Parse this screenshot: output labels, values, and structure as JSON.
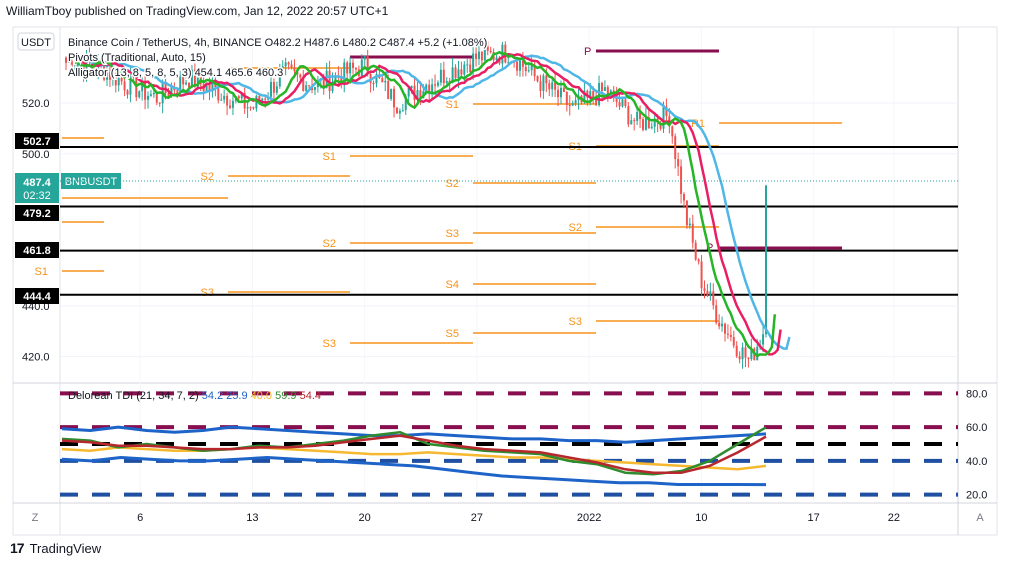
{
  "header": {
    "published_by": "WilliamTboy published on TradingView.com, Jan 12, 2022 20:57 UTC+1"
  },
  "footer": {
    "brand": "TradingView",
    "logo_glyph": "17"
  },
  "colors": {
    "bull": "#26a69a",
    "bear": "#ef5350",
    "alligator_jaw": "#4fb6e8",
    "alligator_teeth": "#e91e63",
    "alligator_lips": "#26b526",
    "pivot_orange": "#f7931a",
    "pivot_purple": "#880e4f",
    "tdi_blue": "#1e63c8",
    "tdi_yellow": "#f5b82e",
    "tdi_green": "#2e8b2e",
    "tdi_red": "#b7282e",
    "tdi_navy": "#1e4fa0"
  },
  "main_pane": {
    "currency": "USDT",
    "legend": [
      "Binance Coin / TetherUS, 4h, BINANCE  O482.2  H487.6  L480.2  C487.4  +5.2 (+1.08%)",
      "Pivots (Traditional, Auto, 15)",
      "Alligator (13, 8, 5, 8, 5, 3)  454.1  465.6  460.3"
    ],
    "price_labels": [
      {
        "value": "502.7",
        "style": "black"
      },
      {
        "value": "487.4",
        "style": "green",
        "extra": "02:32"
      },
      {
        "value": "479.2",
        "style": "black"
      },
      {
        "value": "461.8",
        "style": "black"
      },
      {
        "value": "444.4",
        "style": "black"
      }
    ],
    "symbol_tag": "BNBUSDT",
    "pivot_labels": [
      "S1",
      "S2",
      "S3",
      "S1",
      "S2",
      "S3",
      "S1",
      "S2",
      "S3",
      "S4",
      "S5",
      "S1",
      "S2",
      "S3",
      "R1",
      "P",
      "P"
    ]
  },
  "chart_data": [
    {
      "type": "candlestick",
      "title": "Binance Coin / TetherUS, 4h, BINANCE",
      "ylim": [
        410,
        550
      ],
      "y_ticks": [
        420.0,
        440.0,
        500.0,
        520.0
      ],
      "x_tick_labels": [
        "6",
        "13",
        "20",
        "27",
        "2022",
        "10",
        "17",
        "22"
      ],
      "horizontal_levels": [
        502.7,
        479.2,
        461.8,
        444.4
      ],
      "last_price": 487.4,
      "ohlc_last": {
        "open": 482.2,
        "high": 487.6,
        "low": 480.2,
        "close": 487.4,
        "change": 5.2,
        "change_pct": 1.08
      },
      "price_path": [
        {
          "date": "2022-01-03",
          "close": 536
        },
        {
          "date": "2022-01-05",
          "close": 528
        },
        {
          "date": "2022-01-07",
          "close": 522
        },
        {
          "date": "2022-01-09",
          "close": 530
        },
        {
          "date": "2022-01-11",
          "close": 524
        },
        {
          "date": "2022-01-13",
          "close": 518
        },
        {
          "date": "2022-01-15",
          "close": 532
        },
        {
          "date": "2022-01-17",
          "close": 527
        },
        {
          "date": "2022-01-20",
          "close": 535
        },
        {
          "date": "2022-01-22",
          "close": 520
        },
        {
          "date": "2022-01-24",
          "close": 528
        },
        {
          "date": "2022-01-27",
          "close": 538
        },
        {
          "date": "2022-01-29",
          "close": 540
        },
        {
          "date": "2022-01-31",
          "close": 528
        },
        {
          "date": "2022-02-02",
          "close": 518
        },
        {
          "date": "2022-02-04",
          "close": 525
        },
        {
          "date": "2022-02-06",
          "close": 512
        },
        {
          "date": "2022-02-08",
          "close": 515
        },
        {
          "date": "2022-02-09",
          "close": 476
        },
        {
          "date": "2022-02-10",
          "close": 450
        },
        {
          "date": "2022-02-11",
          "close": 436
        },
        {
          "date": "2022-02-12",
          "close": 426
        },
        {
          "date": "2022-02-13",
          "close": 418
        },
        {
          "date": "2022-02-14",
          "close": 432
        },
        {
          "date": "2022-02-15",
          "close": 452
        },
        {
          "date": "2022-02-16",
          "close": 465
        },
        {
          "date": "2022-02-17",
          "close": 487.4
        }
      ],
      "alligator": {
        "jaw": 454.1,
        "teeth": 465.6,
        "lips": 460.3
      }
    },
    {
      "type": "line",
      "title": "Delorean TDI (21, 34, 7, 2)",
      "legend_values": [
        "54.2",
        "25.9",
        "40.0",
        "59.9",
        "54.4"
      ],
      "ylim": [
        15,
        85
      ],
      "y_ticks": [
        20.0,
        40.0,
        60.0,
        80.0
      ],
      "levels": [
        80,
        60,
        50,
        40,
        20
      ],
      "series": [
        {
          "values": [
            59,
            58,
            60,
            58,
            57,
            58,
            60,
            59,
            58,
            57,
            56,
            55,
            55,
            56,
            55,
            54,
            53,
            53,
            52,
            52,
            51,
            52,
            53,
            54,
            55,
            56
          ]
        },
        {
          "values": [
            47,
            46,
            48,
            47,
            46,
            46,
            47,
            48,
            47,
            46,
            45,
            44,
            44,
            45,
            44,
            43,
            42,
            42,
            41,
            40,
            39,
            38,
            37,
            36,
            35,
            37
          ]
        },
        {
          "values": [
            53,
            52,
            48,
            50,
            48,
            46,
            47,
            49,
            48,
            50,
            52,
            55,
            57,
            50,
            48,
            46,
            45,
            44,
            40,
            38,
            33,
            32,
            34,
            40,
            50,
            59.9
          ]
        },
        {
          "values": [
            52,
            51,
            49,
            49,
            48,
            47,
            47,
            48,
            48,
            49,
            51,
            53,
            55,
            52,
            49,
            47,
            46,
            45,
            42,
            39,
            35,
            33,
            33,
            37,
            45,
            54.4
          ]
        },
        {
          "values": [
            41,
            40,
            42,
            41,
            40,
            40,
            41,
            42,
            41,
            40,
            39,
            38,
            37,
            35,
            33,
            31,
            30,
            29,
            28,
            27,
            27,
            26,
            26,
            26,
            25.9
          ]
        }
      ]
    }
  ]
}
